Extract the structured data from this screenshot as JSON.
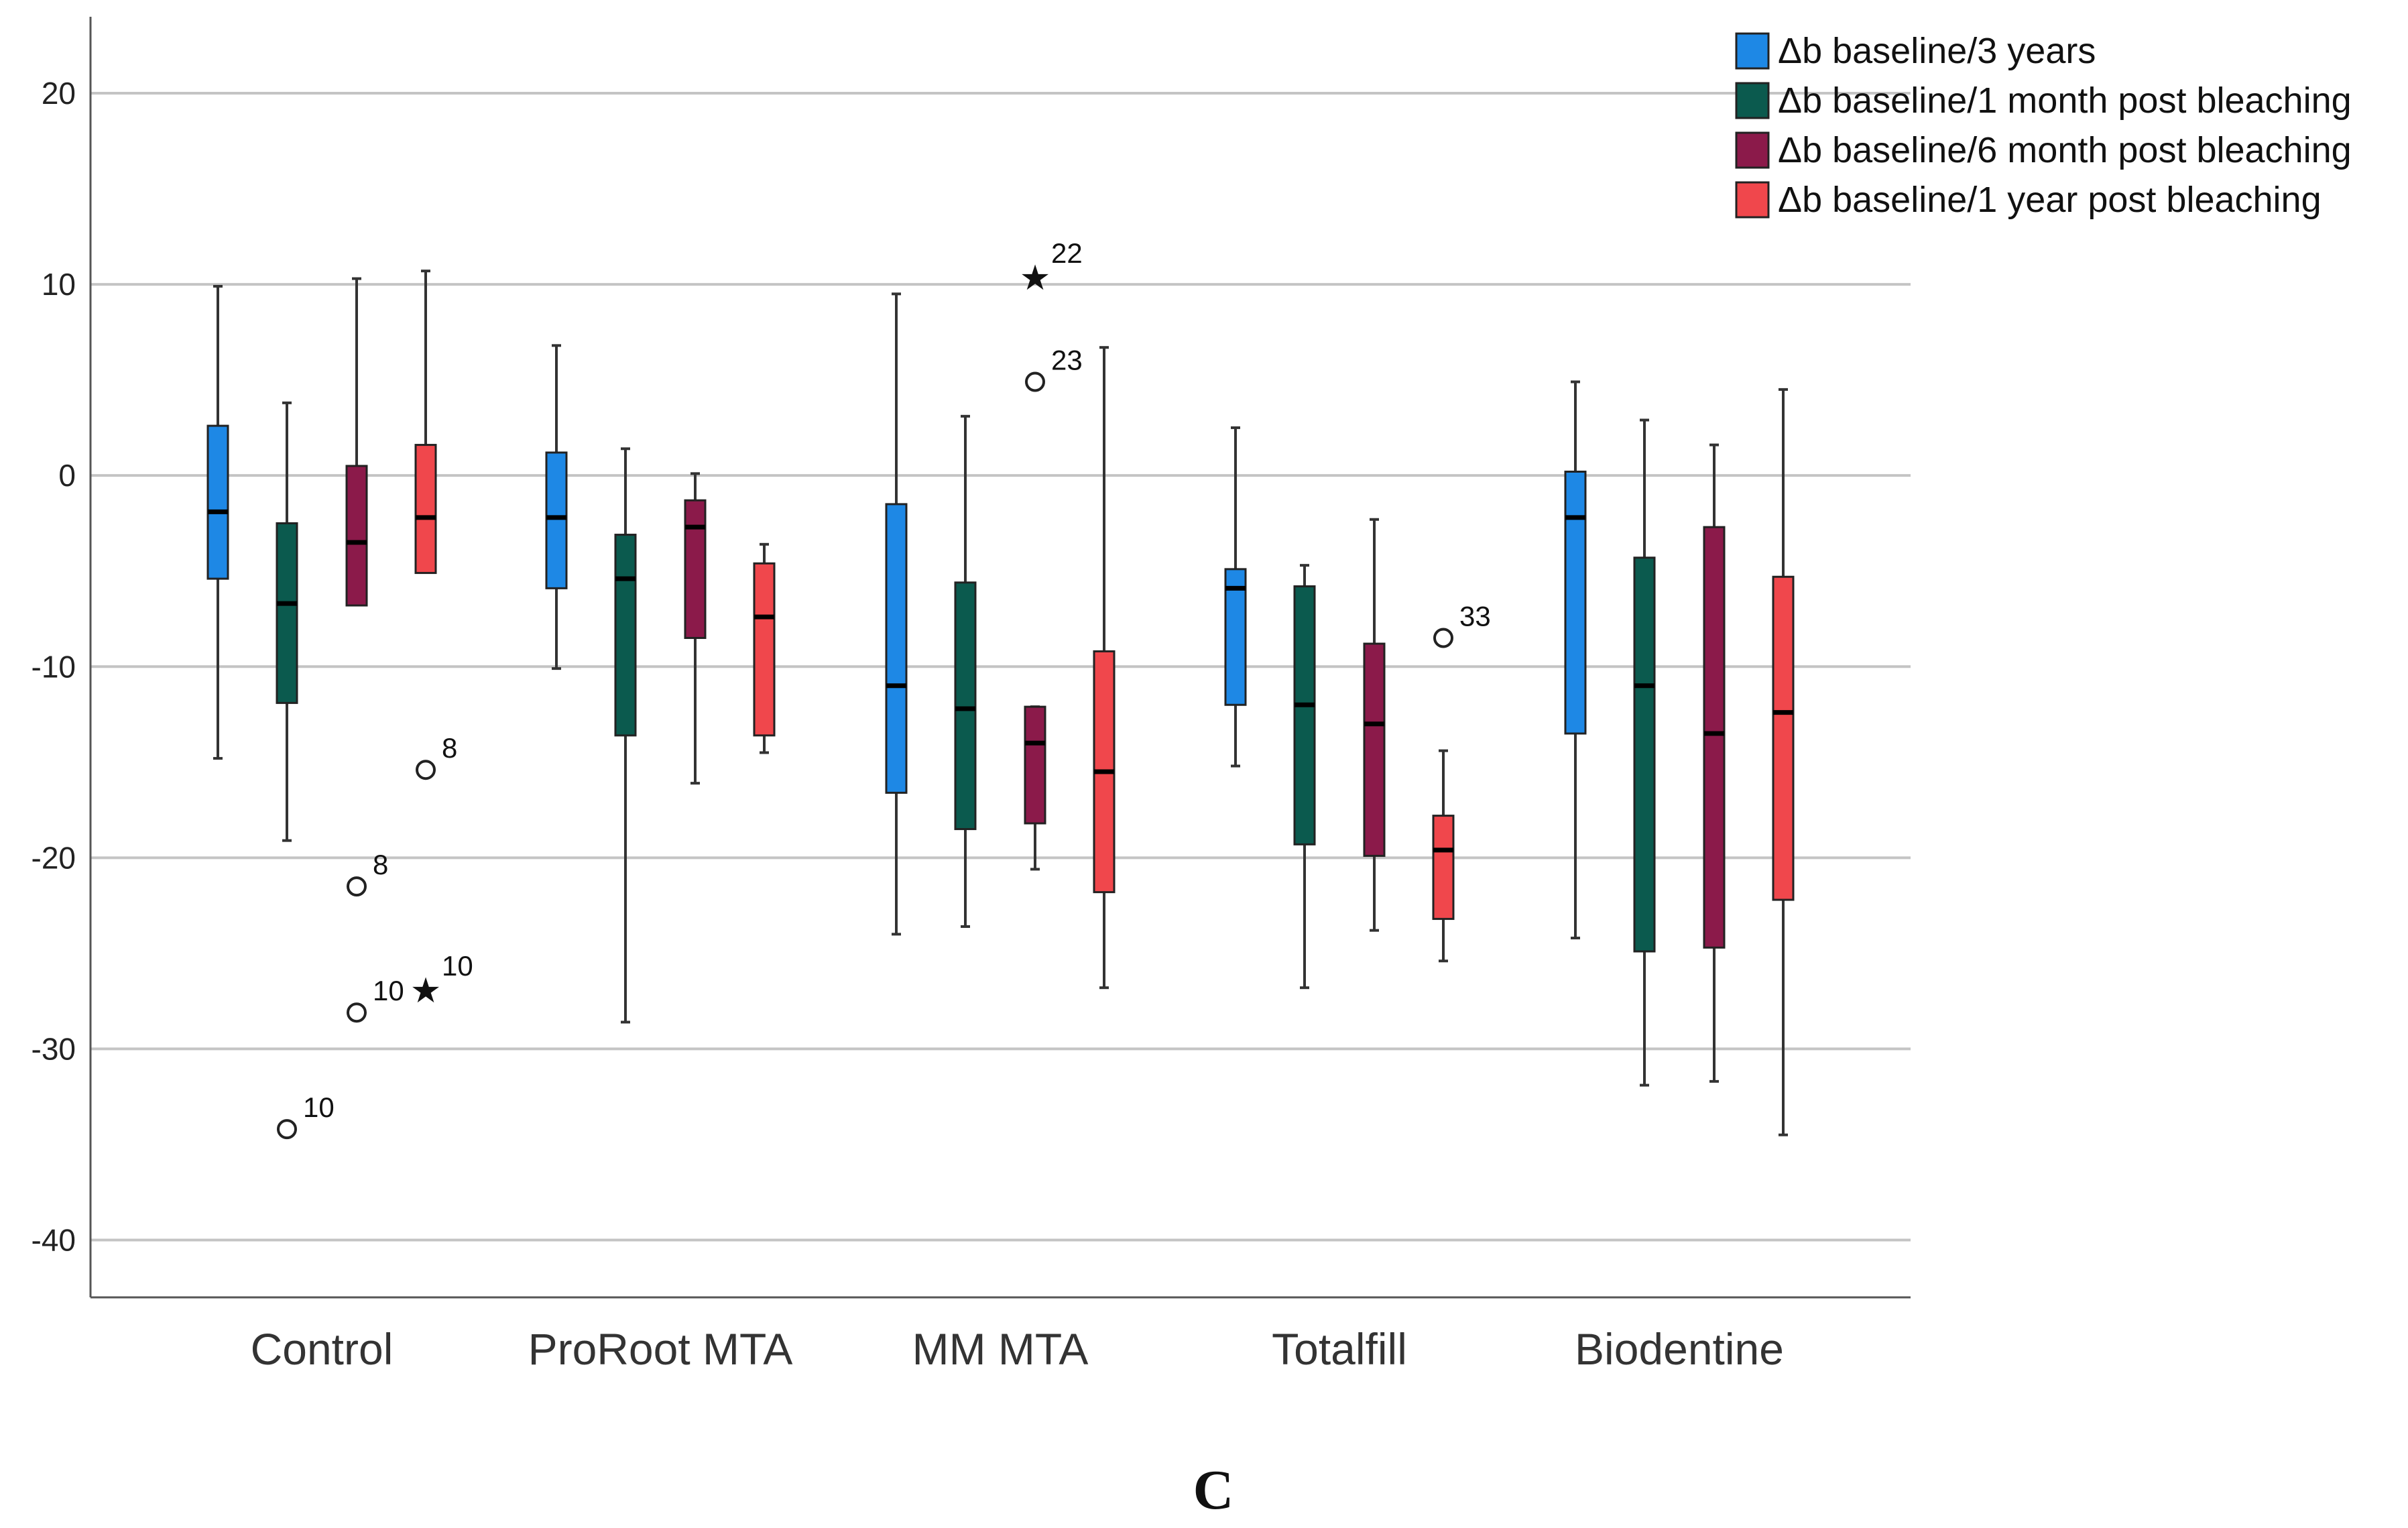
{
  "chart_data": {
    "type": "boxplot",
    "panel_label": "C",
    "y_axis": {
      "min": -43,
      "max": 24,
      "ticks": [
        20,
        10,
        0,
        -10,
        -20,
        -30,
        -40
      ],
      "grid": true
    },
    "categories": [
      "Control",
      "ProRoot MTA",
      "MM MTA",
      "Totalfill",
      "Biodentine"
    ],
    "legend_position": "top-right",
    "series": [
      {
        "name": "Δb baseline/3 years",
        "color": "#1E88E5",
        "boxes": [
          {
            "whisker_low": -14.8,
            "q1": -5.4,
            "median": -1.9,
            "q3": 2.6,
            "whisker_high": 9.9
          },
          {
            "whisker_low": -10.1,
            "q1": -5.9,
            "median": -2.2,
            "q3": 1.2,
            "whisker_high": 6.8
          },
          {
            "whisker_low": -24.0,
            "q1": -16.6,
            "median": -11.0,
            "q3": -1.5,
            "whisker_high": 9.5
          },
          {
            "whisker_low": -15.2,
            "q1": -12.0,
            "median": -5.9,
            "q3": -4.9,
            "whisker_high": 2.5
          },
          {
            "whisker_low": -24.2,
            "q1": -13.5,
            "median": -2.2,
            "q3": 0.2,
            "whisker_high": 4.9
          }
        ]
      },
      {
        "name": "Δb baseline/1 month post bleaching",
        "color": "#0B5A4E",
        "boxes": [
          {
            "whisker_low": -19.1,
            "q1": -11.9,
            "median": -6.7,
            "q3": -2.5,
            "whisker_high": 3.8
          },
          {
            "whisker_low": -28.6,
            "q1": -13.6,
            "median": -5.4,
            "q3": -3.1,
            "whisker_high": 1.4
          },
          {
            "whisker_low": -23.6,
            "q1": -18.5,
            "median": -12.2,
            "q3": -5.6,
            "whisker_high": 3.1
          },
          {
            "whisker_low": -26.8,
            "q1": -19.3,
            "median": -12.0,
            "q3": -5.8,
            "whisker_high": -4.7
          },
          {
            "whisker_low": -31.9,
            "q1": -24.9,
            "median": -11.0,
            "q3": -4.3,
            "whisker_high": 2.9
          }
        ]
      },
      {
        "name": "Δb baseline/6 month post bleaching",
        "color": "#8B1A4A",
        "boxes": [
          {
            "whisker_low": null,
            "q1": -6.8,
            "median": -3.5,
            "q3": 0.5,
            "whisker_high": 10.3
          },
          {
            "whisker_low": -16.1,
            "q1": -8.5,
            "median": -2.7,
            "q3": -1.3,
            "whisker_high": 0.1
          },
          {
            "whisker_low": -20.6,
            "q1": -18.2,
            "median": -14.0,
            "q3": -12.1,
            "whisker_high": -12.1
          },
          {
            "whisker_low": -23.8,
            "q1": -19.9,
            "median": -13.0,
            "q3": -8.8,
            "whisker_high": -2.3
          },
          {
            "whisker_low": -31.7,
            "q1": -24.7,
            "median": -13.5,
            "q3": -2.7,
            "whisker_high": 1.6
          }
        ]
      },
      {
        "name": "Δb baseline/1 year post bleaching",
        "color": "#F0474C",
        "boxes": [
          {
            "whisker_low": null,
            "q1": -5.1,
            "median": -2.2,
            "q3": 1.6,
            "whisker_high": 10.7
          },
          {
            "whisker_low": -14.5,
            "q1": -13.6,
            "median": -7.4,
            "q3": -4.6,
            "whisker_high": -3.6
          },
          {
            "whisker_low": -26.8,
            "q1": -21.8,
            "median": -15.5,
            "q3": -9.2,
            "whisker_high": 6.7
          },
          {
            "whisker_low": -25.4,
            "q1": -23.2,
            "median": -19.6,
            "q3": -17.8,
            "whisker_high": -14.4
          },
          {
            "whisker_low": -34.5,
            "q1": -22.2,
            "median": -12.4,
            "q3": -5.3,
            "whisker_high": 4.5
          }
        ]
      }
    ],
    "outliers": [
      {
        "category": "Control",
        "series": 1,
        "value": -34.2,
        "marker": "circle",
        "label": "10"
      },
      {
        "category": "Control",
        "series": 2,
        "value": -21.5,
        "marker": "circle",
        "label": "8"
      },
      {
        "category": "Control",
        "series": 2,
        "value": -28.1,
        "marker": "circle",
        "label": "10"
      },
      {
        "category": "Control",
        "series": 3,
        "value": -15.4,
        "marker": "circle",
        "label": "8"
      },
      {
        "category": "Control",
        "series": 3,
        "value": -26.8,
        "marker": "star",
        "label": "10"
      },
      {
        "category": "MM MTA",
        "series": 2,
        "value": 10.5,
        "marker": "star",
        "label": "22"
      },
      {
        "category": "MM MTA",
        "series": 2,
        "value": 4.9,
        "marker": "circle",
        "label": "23"
      },
      {
        "category": "Totalfill",
        "series": 3,
        "value": -8.5,
        "marker": "circle",
        "label": "33"
      }
    ]
  }
}
